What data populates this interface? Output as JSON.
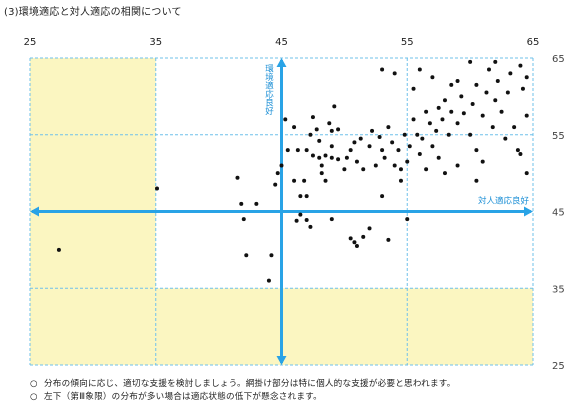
{
  "title": "(3)環境適応と対人適応の相関について",
  "notes": [
    "分布の傾向に応じ、適切な支援を検討しましょう。網掛け部分は特に個人的な支援が必要と思われます。",
    "左下（第Ⅲ象限）の分布が多い場合は適応状態の低下が懸念されます。"
  ],
  "note_bullet": "○",
  "colors": {
    "shade": "#fbf6c1",
    "axis": "#29a3e6",
    "grid": "#6fc0ea",
    "point": "#111111",
    "label": "#1e90d6"
  },
  "chart_data": {
    "type": "scatter",
    "xlim": [
      25,
      65
    ],
    "ylim": [
      25,
      65
    ],
    "xticks": [
      25,
      35,
      45,
      55,
      65
    ],
    "yticks": [
      25,
      35,
      45,
      55,
      65
    ],
    "x_tick_labels": [
      "25",
      "35",
      "45",
      "55",
      "65"
    ],
    "y_tick_labels": [
      "25",
      "35",
      "45",
      "55",
      "65"
    ],
    "x_axis_label": "対人適応良好",
    "y_axis_label": "環境適応良好",
    "midline": {
      "x": 45,
      "y": 45
    },
    "shaded_regions": [
      {
        "x": [
          25,
          35
        ],
        "y": [
          25,
          65
        ]
      },
      {
        "x": [
          25,
          65
        ],
        "y": [
          25,
          35
        ]
      }
    ],
    "grid": true,
    "points": [
      [
        35.1,
        48.0
      ],
      [
        27.3,
        40.0
      ],
      [
        41.5,
        49.4
      ],
      [
        41.8,
        46.0
      ],
      [
        42.0,
        44.0
      ],
      [
        43.0,
        46.0
      ],
      [
        44.0,
        36.0
      ],
      [
        44.2,
        39.3
      ],
      [
        42.2,
        39.3
      ],
      [
        44.5,
        48.5
      ],
      [
        44.7,
        50.0
      ],
      [
        45.0,
        51.0
      ],
      [
        45.3,
        57.0
      ],
      [
        45.5,
        53.0
      ],
      [
        46.0,
        49.0
      ],
      [
        46.0,
        56.0
      ],
      [
        46.3,
        53.0
      ],
      [
        46.8,
        49.0
      ],
      [
        47.0,
        47.0
      ],
      [
        47.0,
        53.0
      ],
      [
        47.3,
        55.0
      ],
      [
        47.5,
        52.3
      ],
      [
        47.5,
        57.3
      ],
      [
        47.8,
        55.7
      ],
      [
        48.0,
        52.0
      ],
      [
        48.0,
        54.2
      ],
      [
        48.2,
        50.0
      ],
      [
        48.2,
        51.0
      ],
      [
        48.5,
        49.0
      ],
      [
        48.5,
        52.3
      ],
      [
        48.8,
        56.5
      ],
      [
        49.0,
        52.0
      ],
      [
        49.0,
        53.5
      ],
      [
        49.0,
        55.5
      ],
      [
        49.2,
        58.7
      ],
      [
        49.5,
        51.8
      ],
      [
        49.5,
        55.7
      ],
      [
        46.5,
        47.0
      ],
      [
        46.2,
        43.8
      ],
      [
        47.0,
        43.9
      ],
      [
        47.3,
        43.0
      ],
      [
        46.5,
        44.6
      ],
      [
        49.0,
        44.0
      ],
      [
        50.5,
        41.5
      ],
      [
        50.8,
        41.0
      ],
      [
        51.0,
        40.5
      ],
      [
        51.5,
        41.7
      ],
      [
        52.0,
        42.8
      ],
      [
        53.0,
        47.0
      ],
      [
        53.5,
        41.3
      ],
      [
        55.0,
        44.0
      ],
      [
        50.0,
        50.5
      ],
      [
        50.2,
        52.0
      ],
      [
        50.5,
        53.0
      ],
      [
        50.8,
        54.0
      ],
      [
        51.0,
        51.5
      ],
      [
        51.3,
        54.5
      ],
      [
        51.5,
        50.5
      ],
      [
        52.0,
        53.5
      ],
      [
        52.2,
        55.5
      ],
      [
        52.5,
        51.0
      ],
      [
        52.8,
        54.7
      ],
      [
        53.0,
        53.0
      ],
      [
        53.2,
        52.0
      ],
      [
        53.5,
        56.0
      ],
      [
        53.8,
        54.0
      ],
      [
        54.0,
        51.0
      ],
      [
        54.3,
        53.0
      ],
      [
        54.5,
        49.0
      ],
      [
        54.5,
        50.5
      ],
      [
        54.8,
        55.0
      ],
      [
        55.0,
        51.5
      ],
      [
        55.2,
        53.5
      ],
      [
        55.5,
        57.0
      ],
      [
        55.8,
        55.0
      ],
      [
        56.0,
        52.5
      ],
      [
        56.2,
        54.5
      ],
      [
        56.5,
        58.0
      ],
      [
        56.8,
        56.5
      ],
      [
        57.0,
        53.5
      ],
      [
        57.3,
        55.5
      ],
      [
        57.5,
        58.5
      ],
      [
        57.8,
        57.0
      ],
      [
        58.0,
        59.5
      ],
      [
        58.3,
        55.0
      ],
      [
        58.5,
        58.0
      ],
      [
        59.0,
        56.5
      ],
      [
        59.3,
        60.0
      ],
      [
        59.5,
        57.8
      ],
      [
        60.0,
        55.0
      ],
      [
        60.2,
        59.0
      ],
      [
        60.5,
        53.0
      ],
      [
        60.5,
        61.5
      ],
      [
        61.0,
        57.5
      ],
      [
        61.3,
        60.5
      ],
      [
        61.5,
        63.5
      ],
      [
        61.8,
        56.0
      ],
      [
        62.0,
        59.5
      ],
      [
        62.2,
        62.0
      ],
      [
        62.5,
        58.0
      ],
      [
        62.8,
        54.5
      ],
      [
        63.0,
        60.5
      ],
      [
        63.2,
        63.0
      ],
      [
        63.5,
        56.0
      ],
      [
        63.8,
        53.0
      ],
      [
        64.0,
        64.0
      ],
      [
        64.2,
        61.0
      ],
      [
        64.5,
        57.5
      ],
      [
        64.5,
        62.5
      ],
      [
        64.0,
        52.5
      ],
      [
        64.5,
        50.0
      ],
      [
        59.0,
        62.0
      ],
      [
        57.0,
        62.5
      ],
      [
        56.0,
        63.5
      ],
      [
        55.5,
        61.0
      ],
      [
        54.0,
        63.0
      ],
      [
        53.0,
        63.5
      ],
      [
        58.5,
        61.5
      ],
      [
        60.0,
        64.5
      ],
      [
        62.0,
        64.5
      ],
      [
        61.0,
        51.5
      ],
      [
        60.5,
        49.0
      ],
      [
        59.0,
        51.0
      ],
      [
        58.0,
        50.0
      ],
      [
        57.5,
        52.0
      ],
      [
        56.5,
        50.5
      ]
    ]
  }
}
